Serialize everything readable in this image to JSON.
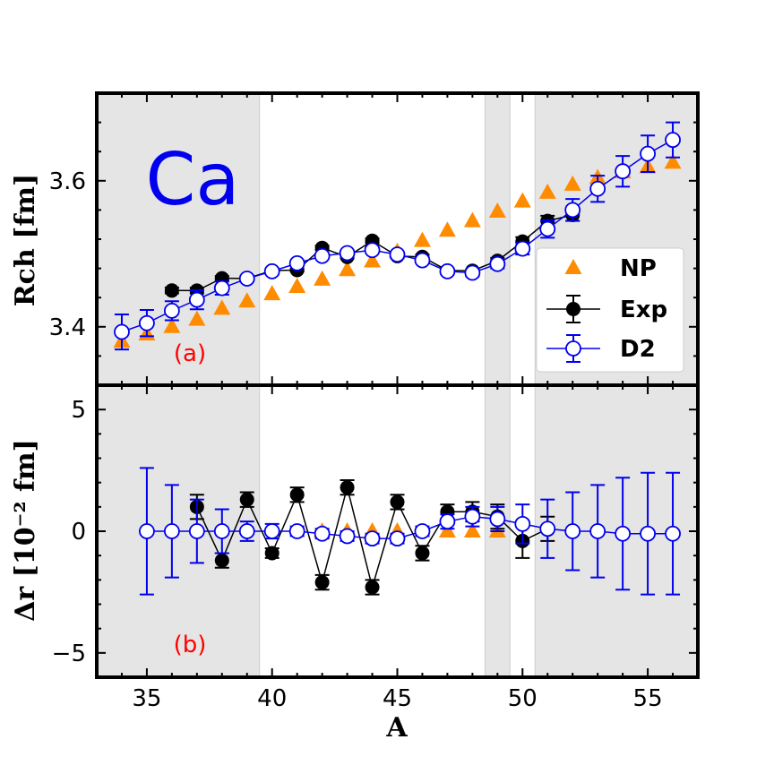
{
  "chart_data": {
    "type": "scatter",
    "element": "Ca",
    "colors": {
      "np": "#ff8c00",
      "exp": "#000000",
      "d2": "#0000ee",
      "label": "#ff0000",
      "shade": "#e5e5e5",
      "shade_edge": "#cccccc"
    },
    "xlabel": "A",
    "xlim": [
      33,
      57
    ],
    "xticks": [
      35,
      40,
      45,
      50,
      55
    ],
    "shaded_x_ranges": [
      [
        33,
        39.5
      ],
      [
        48.5,
        49.5
      ],
      [
        50.5,
        57
      ]
    ],
    "legend": [
      {
        "key": "np",
        "label": "NP",
        "marker": "triangle"
      },
      {
        "key": "exp",
        "label": "Exp",
        "marker": "filled-circle-errorbar"
      },
      {
        "key": "d2",
        "label": "D2",
        "marker": "open-circle-errorbar"
      }
    ],
    "panels": [
      {
        "id": "a",
        "label": "(a)",
        "ylabel": "Rch [fm]",
        "ylim": [
          3.32,
          3.72
        ],
        "yticks": [
          3.4,
          3.6
        ],
        "series": {
          "np": {
            "x": [
              34,
              35,
              36,
              37,
              38,
              39,
              40,
              41,
              42,
              43,
              44,
              45,
              46,
              47,
              48,
              49,
              50,
              51,
              52,
              53,
              54,
              55,
              56
            ],
            "y": [
              3.38,
              3.39,
              3.4,
              3.41,
              3.425,
              3.435,
              3.445,
              3.455,
              3.465,
              3.478,
              3.49,
              3.503,
              3.518,
              3.532,
              3.545,
              3.558,
              3.572,
              3.584,
              3.595,
              3.604,
              3.612,
              3.619,
              3.625
            ]
          },
          "exp": {
            "x": [
              36,
              37,
              38,
              39,
              40,
              41,
              42,
              43,
              44,
              45,
              46,
              47,
              48,
              49,
              50,
              51,
              52
            ],
            "y": [
              3.4497,
              3.4496,
              3.4665,
              3.4662,
              3.4771,
              3.4777,
              3.5081,
              3.4957,
              3.5179,
              3.4968,
              3.4958,
              3.4771,
              3.4768,
              3.4904,
              3.5168,
              3.545,
              3.5532
            ],
            "err": [
              0.004,
              0.004,
              0.003,
              0.003,
              0.002,
              0.002,
              0.003,
              0.002,
              0.003,
              0.003,
              0.003,
              0.002,
              0.002,
              0.004,
              0.006,
              0.007,
              0.008
            ]
          },
          "d2": {
            "x": [
              34,
              35,
              36,
              37,
              38,
              39,
              40,
              41,
              42,
              43,
              44,
              45,
              46,
              47,
              48,
              49,
              50,
              51,
              52,
              53,
              54,
              55,
              56
            ],
            "y": [
              3.393,
              3.405,
              3.422,
              3.437,
              3.453,
              3.466,
              3.476,
              3.487,
              3.497,
              3.501,
              3.505,
              3.499,
              3.491,
              3.476,
              3.474,
              3.486,
              3.507,
              3.534,
              3.56,
              3.589,
              3.613,
              3.637,
              3.656
            ],
            "err": [
              0.024,
              0.018,
              0.013,
              0.013,
              0.009,
              0.004,
              0.004,
              0.002,
              0.003,
              0.002,
              0.003,
              0.003,
              0.002,
              0.004,
              0.005,
              0.006,
              0.008,
              0.012,
              0.015,
              0.018,
              0.021,
              0.025,
              0.024
            ]
          }
        }
      },
      {
        "id": "b",
        "label": "(b)",
        "ylabel": "Δr [10⁻² fm]",
        "ylim": [
          -6,
          6
        ],
        "yticks": [
          -5,
          0,
          5
        ],
        "series": {
          "np": {
            "x": [
              42,
              43,
              44,
              45,
              47,
              48,
              49
            ],
            "y": [
              0,
              0,
              0,
              0,
              0,
              0,
              0
            ]
          },
          "exp": {
            "x": [
              37,
              38,
              39,
              40,
              41,
              42,
              43,
              44,
              45,
              46,
              47,
              48,
              49,
              50,
              51
            ],
            "y": [
              1.0,
              -1.2,
              1.3,
              -0.9,
              1.5,
              -2.1,
              1.8,
              -2.3,
              1.2,
              -0.9,
              0.8,
              0.8,
              0.6,
              -0.4,
              0.1
            ],
            "err": [
              0.5,
              0.3,
              0.3,
              0.2,
              0.3,
              0.3,
              0.3,
              0.3,
              0.3,
              0.3,
              0.3,
              0.4,
              0.5,
              0.7,
              0.5
            ]
          },
          "d2": {
            "x": [
              35,
              36,
              37,
              38,
              39,
              40,
              41,
              42,
              43,
              44,
              45,
              46,
              47,
              48,
              49,
              50,
              51,
              52,
              53,
              54,
              55,
              56
            ],
            "y": [
              0,
              0,
              0,
              0,
              0,
              0,
              0,
              -0.1,
              -0.2,
              -0.3,
              -0.3,
              0,
              0.4,
              0.6,
              0.5,
              0.3,
              0.1,
              0,
              0,
              -0.1,
              -0.1,
              -0.1
            ],
            "err": [
              2.6,
              1.9,
              1.3,
              0.9,
              0.4,
              0.3,
              0.2,
              0.2,
              0.2,
              0.2,
              0.2,
              0.2,
              0.3,
              0.4,
              0.5,
              0.8,
              1.2,
              1.6,
              1.9,
              2.3,
              2.5,
              2.5
            ]
          }
        }
      }
    ]
  }
}
